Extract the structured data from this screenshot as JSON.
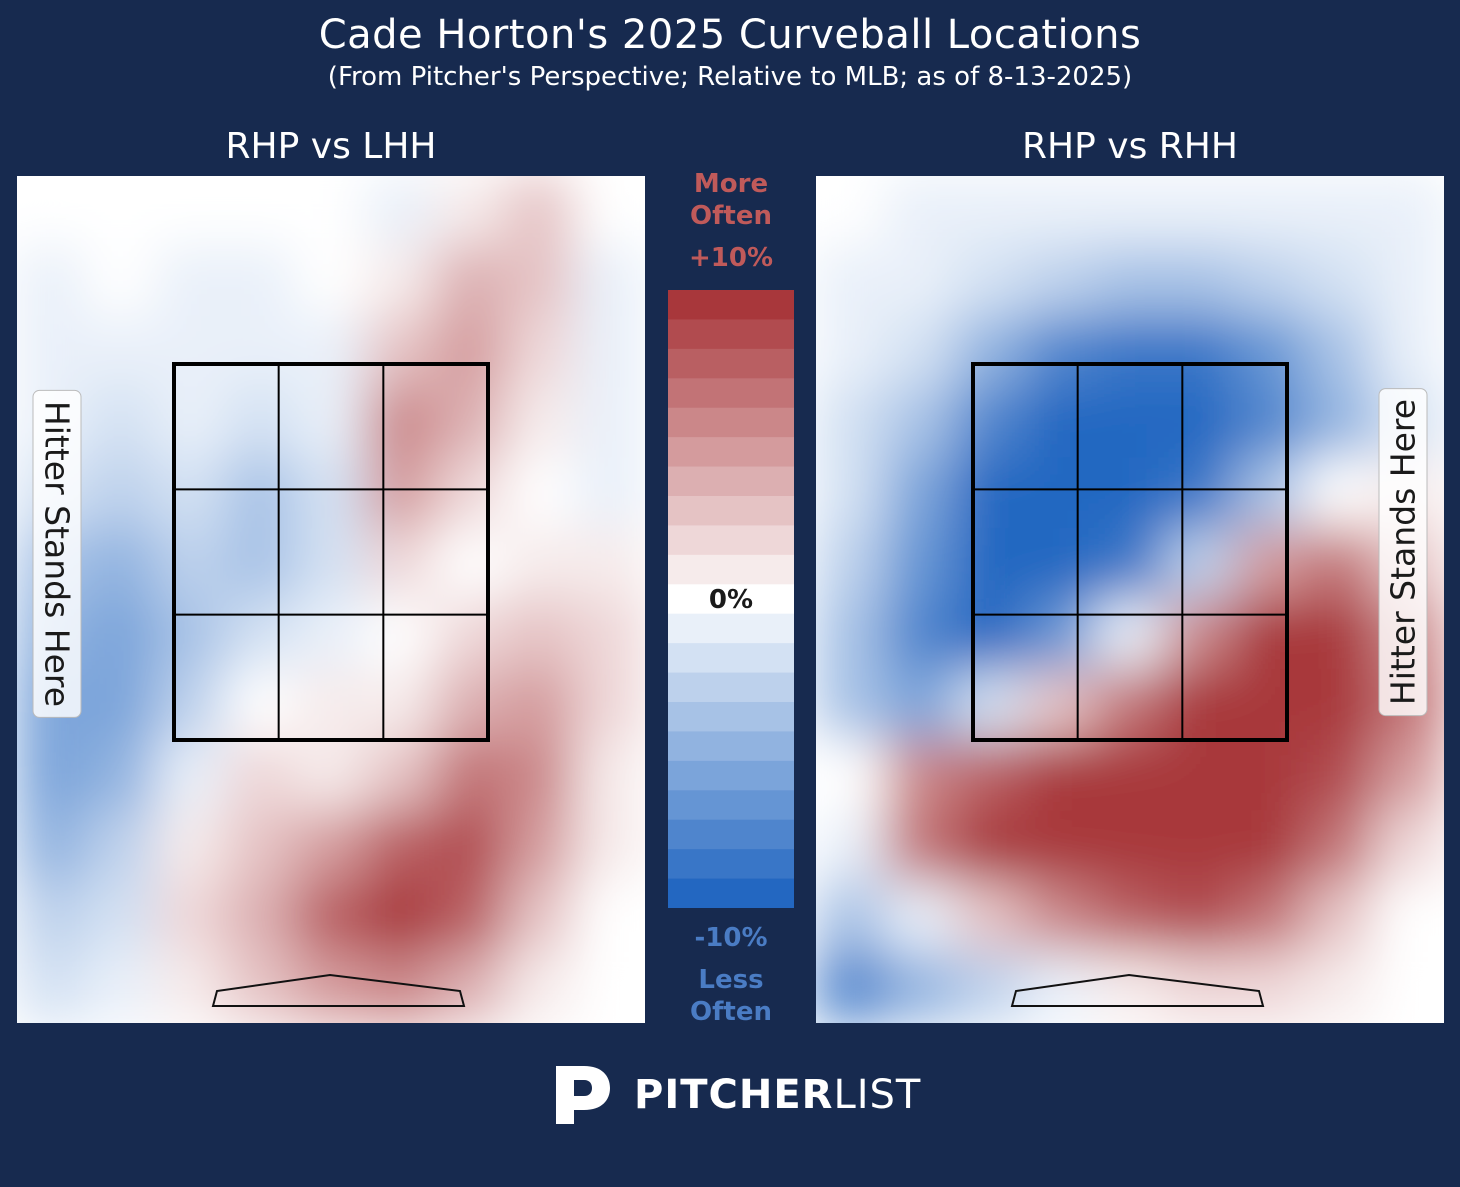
{
  "title": "Cade Horton's 2025 Curveball Locations",
  "subtitle": "(From Pitcher's Perspective; Relative to MLB; as of 8-13-2025)",
  "colorbar": {
    "top_label": "More Often",
    "max_label": "+10%",
    "mid_label": "0%",
    "min_label": "-10%",
    "bottom_label": "Less Often",
    "max_color": "#a8373b",
    "mid_color": "#ffffff",
    "min_color": "#2367c1"
  },
  "logo": {
    "bold": "PITCHER",
    "light": "LIST"
  },
  "chart_data": [
    {
      "type": "heatmap",
      "title": "RHP vs LHH",
      "side_label": "Hitter Stands Here",
      "value_range": [
        -10,
        10
      ],
      "unit": "%",
      "grid": {
        "cols": 9,
        "rows": 12
      },
      "values": [
        [
          0,
          0,
          0,
          0,
          0,
          -1,
          1,
          3,
          0
        ],
        [
          -1,
          0,
          -1,
          -1,
          0,
          1,
          4,
          3,
          -1
        ],
        [
          -1,
          -1,
          -1,
          -1,
          -1,
          3,
          5,
          2,
          -1
        ],
        [
          -1,
          -2,
          -1,
          -2,
          -1,
          6,
          4,
          1,
          -1
        ],
        [
          -2,
          -3,
          -2,
          -4,
          -2,
          5,
          2,
          0,
          -1
        ],
        [
          -4,
          -5,
          -3,
          -4,
          -2,
          2,
          0,
          1,
          1
        ],
        [
          -5,
          -6,
          -4,
          -2,
          -1,
          0,
          2,
          3,
          2
        ],
        [
          -6,
          -6,
          -3,
          0,
          1,
          1,
          4,
          5,
          2
        ],
        [
          -6,
          -5,
          -1,
          2,
          1,
          3,
          7,
          6,
          1
        ],
        [
          -5,
          -3,
          1,
          3,
          5,
          8,
          9,
          5,
          1
        ],
        [
          -3,
          -2,
          2,
          4,
          8,
          10,
          8,
          3,
          0
        ],
        [
          -2,
          -1,
          1,
          3,
          5,
          6,
          4,
          1,
          0
        ]
      ]
    },
    {
      "type": "heatmap",
      "title": "RHP vs RHH",
      "side_label": "Hitter Stands Here",
      "value_range": [
        -10,
        10
      ],
      "unit": "%",
      "grid": {
        "cols": 9,
        "rows": 12
      },
      "values": [
        [
          0,
          -1,
          -1,
          -1,
          -1,
          -1,
          -1,
          -1,
          -1
        ],
        [
          -1,
          -1,
          -2,
          -3,
          -4,
          -4,
          -3,
          -2,
          -1
        ],
        [
          -1,
          -2,
          -5,
          -8,
          -9,
          -9,
          -7,
          -4,
          -1
        ],
        [
          -2,
          -4,
          -8,
          -10,
          -10,
          -10,
          -8,
          -5,
          -2
        ],
        [
          -2,
          -6,
          -10,
          -10,
          -10,
          -9,
          -4,
          0,
          1
        ],
        [
          -3,
          -7,
          -10,
          -10,
          -9,
          -3,
          5,
          7,
          3
        ],
        [
          -4,
          -8,
          -10,
          -7,
          -1,
          6,
          10,
          10,
          6
        ],
        [
          -4,
          -6,
          -2,
          3,
          7,
          10,
          10,
          10,
          7
        ],
        [
          0,
          6,
          8,
          10,
          10,
          10,
          10,
          9,
          5
        ],
        [
          -1,
          7,
          10,
          10,
          10,
          10,
          10,
          7,
          2
        ],
        [
          -4,
          -1,
          3,
          6,
          8,
          9,
          7,
          3,
          0
        ],
        [
          -8,
          -5,
          -3,
          -1,
          1,
          2,
          2,
          1,
          0
        ]
      ]
    }
  ]
}
